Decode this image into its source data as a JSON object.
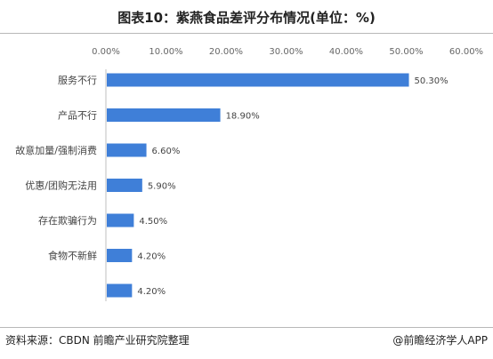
{
  "title": "图表10：紫燕食品差评分布情况(单位：%)",
  "footer": {
    "source": "资料来源：CBDN 前瞻产业研究院整理",
    "brand": "@前瞻经济学人APP"
  },
  "chart_data": {
    "type": "bar",
    "orientation": "horizontal",
    "categories": [
      "服务不行",
      "产品不行",
      "故意加量/强制消费",
      "优惠/团购无法用",
      "存在欺骗行为",
      "食物不新鲜",
      ""
    ],
    "values": [
      50.3,
      18.9,
      6.6,
      5.9,
      4.5,
      4.2,
      4.2
    ],
    "data_labels": [
      "50.30%",
      "18.90%",
      "6.60%",
      "5.90%",
      "4.50%",
      "4.20%",
      "4.20%"
    ],
    "xlim": [
      0,
      60
    ],
    "xticks": [
      "0.00%",
      "10.00%",
      "20.00%",
      "30.00%",
      "40.00%",
      "50.00%",
      "60.00%"
    ],
    "x_axis_position": "top",
    "grid": false,
    "bar_color": "#3f7fd8"
  }
}
